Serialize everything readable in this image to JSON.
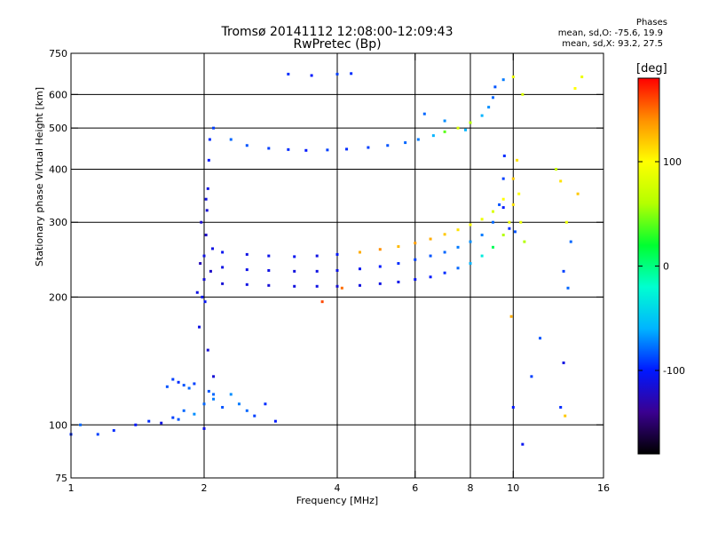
{
  "header": {
    "title_line1": "Tromsø 20141112 12:08:00-12:09:43",
    "title_line2": "RwPretec (Bp)",
    "stats_heading": "Phases",
    "stats_o": "mean, sd,O: -75.6, 19.9",
    "stats_x": "mean, sd,X:  93.2, 27.5"
  },
  "colorbar": {
    "title": "[deg]",
    "ticks": [
      {
        "value": 100,
        "label": "100"
      },
      {
        "value": 0,
        "label": "0"
      },
      {
        "value": -100,
        "label": "-100"
      }
    ],
    "range": [
      -180,
      180
    ],
    "colors": [
      "#000000",
      "#3a0090",
      "#0018ff",
      "#00b4ff",
      "#00ffd0",
      "#00ff30",
      "#b4ff00",
      "#ffff00",
      "#ff9000",
      "#ff0000"
    ]
  },
  "chart_data": {
    "type": "scatter",
    "title": "RwPretec (Bp)",
    "xlabel": "Frequency [MHz]",
    "ylabel": "Stationary phase Virtual Height [km]",
    "x_scale": "log",
    "y_scale": "log",
    "xlim": [
      1,
      16
    ],
    "ylim": [
      75,
      750
    ],
    "grid": true,
    "x_ticks": [
      {
        "value": 1,
        "label": "1"
      },
      {
        "value": 2,
        "label": "2"
      },
      {
        "value": 4,
        "label": "4"
      },
      {
        "value": 6,
        "label": "6"
      },
      {
        "value": 8,
        "label": "8"
      },
      {
        "value": 10,
        "label": "10"
      },
      {
        "value": 16,
        "label": "16"
      }
    ],
    "x_grid": [
      2,
      4,
      6,
      8,
      10
    ],
    "y_ticks": [
      {
        "value": 75,
        "label": "75"
      },
      {
        "value": 100,
        "label": "100"
      },
      {
        "value": 200,
        "label": "200"
      },
      {
        "value": 300,
        "label": "300"
      },
      {
        "value": 400,
        "label": "400"
      },
      {
        "value": 500,
        "label": "500"
      },
      {
        "value": 600,
        "label": "600"
      },
      {
        "value": 750,
        "label": "750"
      }
    ],
    "y_grid": [
      100,
      200,
      300,
      400,
      500,
      600
    ],
    "series": [
      {
        "points": [
          [
            1.0,
            95,
            -95
          ],
          [
            1.05,
            100,
            -80
          ],
          [
            1.15,
            95,
            -90
          ],
          [
            1.25,
            97,
            -95
          ],
          [
            1.4,
            100,
            -100
          ],
          [
            1.5,
            102,
            -95
          ],
          [
            1.6,
            101,
            -110
          ],
          [
            1.7,
            104,
            -90
          ],
          [
            1.75,
            103,
            -85
          ],
          [
            1.8,
            108,
            -80
          ],
          [
            1.9,
            106,
            -70
          ],
          [
            2.0,
            112,
            -80
          ],
          [
            2.1,
            115,
            -75
          ],
          [
            2.2,
            110,
            -85
          ],
          [
            2.3,
            118,
            -70
          ],
          [
            2.4,
            112,
            -75
          ],
          [
            2.5,
            108,
            -80
          ],
          [
            2.6,
            105,
            -90
          ],
          [
            2.75,
            112,
            -95
          ],
          [
            2.9,
            102,
            -100
          ],
          [
            1.65,
            123,
            -85
          ],
          [
            1.7,
            128,
            -90
          ],
          [
            1.75,
            126,
            -95
          ],
          [
            1.8,
            124,
            -85
          ],
          [
            1.85,
            122,
            -80
          ],
          [
            1.9,
            125,
            -90
          ],
          [
            2.05,
            120,
            -85
          ],
          [
            2.1,
            118,
            -80
          ],
          [
            1.95,
            170,
            -110
          ],
          [
            1.98,
            200,
            -105
          ],
          [
            2.0,
            220,
            -115
          ],
          [
            2.0,
            250,
            -110
          ],
          [
            2.02,
            280,
            -120
          ],
          [
            2.03,
            320,
            -115
          ],
          [
            2.04,
            360,
            -110
          ],
          [
            2.05,
            420,
            -100
          ],
          [
            2.06,
            470,
            -95
          ],
          [
            2.1,
            500,
            -90
          ],
          [
            1.93,
            205,
            -110
          ],
          [
            1.96,
            240,
            -125
          ],
          [
            2.01,
            195,
            -105
          ],
          [
            2.04,
            150,
            -115
          ],
          [
            2.07,
            230,
            -120
          ],
          [
            2.09,
            260,
            -110
          ],
          [
            1.97,
            300,
            -118
          ],
          [
            2.02,
            340,
            -112
          ],
          [
            2.2,
            215,
            -115
          ],
          [
            2.5,
            214,
            -110
          ],
          [
            2.8,
            213,
            -115
          ],
          [
            3.2,
            212,
            -112
          ],
          [
            3.6,
            212,
            -110
          ],
          [
            4.0,
            212,
            -115
          ],
          [
            4.5,
            213,
            -112
          ],
          [
            5.0,
            215,
            -110
          ],
          [
            5.5,
            217,
            -108
          ],
          [
            6.0,
            220,
            -105
          ],
          [
            6.5,
            223,
            -100
          ],
          [
            7.0,
            228,
            -95
          ],
          [
            7.5,
            234,
            -80
          ],
          [
            8.0,
            240,
            -60
          ],
          [
            8.5,
            250,
            -30
          ],
          [
            9.0,
            262,
            10
          ],
          [
            9.5,
            280,
            60
          ],
          [
            9.8,
            300,
            90
          ],
          [
            10.0,
            330,
            110
          ],
          [
            2.2,
            235,
            -110
          ],
          [
            2.5,
            232,
            -108
          ],
          [
            2.8,
            231,
            -110
          ],
          [
            3.2,
            230,
            -112
          ],
          [
            3.6,
            230,
            -110
          ],
          [
            4.0,
            231,
            -108
          ],
          [
            4.5,
            233,
            -105
          ],
          [
            5.0,
            236,
            -100
          ],
          [
            5.5,
            240,
            -95
          ],
          [
            6.0,
            245,
            -90
          ],
          [
            6.5,
            250,
            -85
          ],
          [
            7.0,
            255,
            -80
          ],
          [
            7.5,
            262,
            -75
          ],
          [
            8.0,
            270,
            -70
          ],
          [
            8.5,
            280,
            -75
          ],
          [
            9.0,
            300,
            -80
          ],
          [
            9.3,
            330,
            -85
          ],
          [
            9.5,
            380,
            -90
          ],
          [
            9.55,
            430,
            -95
          ],
          [
            2.2,
            255,
            -105
          ],
          [
            2.5,
            252,
            -110
          ],
          [
            2.8,
            250,
            -108
          ],
          [
            3.2,
            249,
            -105
          ],
          [
            3.6,
            250,
            -110
          ],
          [
            4.0,
            252,
            -100
          ],
          [
            4.5,
            255,
            130
          ],
          [
            5.0,
            259,
            140
          ],
          [
            5.5,
            263,
            125
          ],
          [
            6.0,
            268,
            135
          ],
          [
            6.5,
            274,
            130
          ],
          [
            7.0,
            281,
            120
          ],
          [
            7.5,
            288,
            110
          ],
          [
            8.0,
            296,
            100
          ],
          [
            8.5,
            305,
            90
          ],
          [
            9.0,
            318,
            80
          ],
          [
            9.5,
            340,
            100
          ],
          [
            10.0,
            380,
            120
          ],
          [
            10.2,
            420,
            110
          ],
          [
            2.3,
            470,
            -80
          ],
          [
            2.5,
            455,
            -85
          ],
          [
            2.8,
            448,
            -90
          ],
          [
            3.1,
            445,
            -95
          ],
          [
            3.4,
            443,
            -100
          ],
          [
            3.8,
            444,
            -90
          ],
          [
            4.2,
            446,
            -95
          ],
          [
            4.7,
            450,
            -90
          ],
          [
            5.2,
            455,
            -85
          ],
          [
            5.7,
            462,
            -80
          ],
          [
            6.1,
            470,
            -75
          ],
          [
            6.6,
            480,
            -60
          ],
          [
            7.0,
            490,
            40
          ],
          [
            7.5,
            500,
            80
          ],
          [
            8.0,
            515,
            60
          ],
          [
            8.5,
            535,
            -60
          ],
          [
            8.8,
            560,
            -70
          ],
          [
            9.0,
            590,
            -80
          ],
          [
            9.1,
            625,
            -85
          ],
          [
            3.1,
            670,
            -95
          ],
          [
            3.5,
            665,
            -100
          ],
          [
            4.0,
            670,
            -90
          ],
          [
            4.3,
            672,
            -95
          ],
          [
            6.3,
            540,
            -80
          ],
          [
            7.0,
            520,
            -70
          ],
          [
            7.8,
            495,
            -60
          ],
          [
            9.5,
            650,
            -75
          ],
          [
            10.0,
            660,
            90
          ],
          [
            10.5,
            600,
            80
          ],
          [
            9.5,
            325,
            -100
          ],
          [
            9.8,
            290,
            -95
          ],
          [
            10.1,
            285,
            -85
          ],
          [
            10.3,
            350,
            100
          ],
          [
            10.4,
            300,
            90
          ],
          [
            10.6,
            270,
            60
          ],
          [
            12.5,
            400,
            70
          ],
          [
            12.8,
            375,
            110
          ],
          [
            13.2,
            300,
            90
          ],
          [
            13.5,
            270,
            -80
          ],
          [
            14.0,
            350,
            120
          ],
          [
            13.0,
            230,
            -90
          ],
          [
            13.3,
            210,
            -80
          ],
          [
            13.0,
            140,
            -110
          ],
          [
            13.1,
            105,
            120
          ],
          [
            12.8,
            110,
            -95
          ],
          [
            10.0,
            110,
            -100
          ],
          [
            10.5,
            90,
            -105
          ],
          [
            9.9,
            180,
            130
          ],
          [
            11.0,
            130,
            -90
          ],
          [
            11.5,
            160,
            -85
          ],
          [
            13.8,
            620,
            100
          ],
          [
            14.3,
            660,
            90
          ],
          [
            3.7,
            195,
            160
          ],
          [
            4.1,
            210,
            150
          ],
          [
            2.0,
            98,
            -110
          ],
          [
            2.1,
            130,
            -115
          ]
        ]
      }
    ]
  }
}
